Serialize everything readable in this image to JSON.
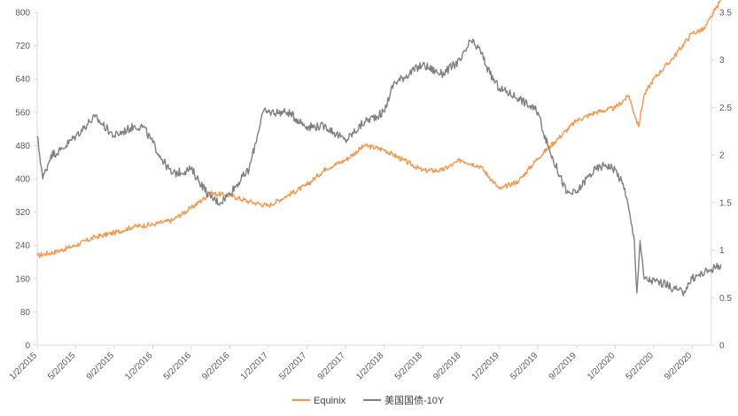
{
  "chart_data": {
    "type": "line",
    "title": "",
    "xlabel": "",
    "ylabel": "",
    "x_tick_labels": [
      "1/2/2015",
      "5/2/2015",
      "9/2/2015",
      "1/2/2016",
      "5/2/2016",
      "9/2/2016",
      "1/2/2017",
      "5/2/2017",
      "9/2/2017",
      "1/2/2018",
      "5/2/2018",
      "9/2/2018",
      "1/2/2019",
      "5/2/2019",
      "9/2/2019",
      "1/2/2020",
      "5/2/2020",
      "9/2/2020"
    ],
    "y_left": {
      "ylim": [
        0,
        800
      ],
      "ticks": [
        "0",
        "80",
        "160",
        "240",
        "320",
        "400",
        "480",
        "560",
        "640",
        "720",
        "800"
      ]
    },
    "y_right": {
      "ylim": [
        0,
        3.5
      ],
      "ticks": [
        "0",
        "0.5",
        "1",
        "1.5",
        "2",
        "2.5",
        "3",
        "3.5"
      ]
    },
    "xlim_months": [
      0,
      70
    ],
    "grid": false,
    "legend_position": "bottom-center",
    "series": [
      {
        "name": "Equinix",
        "axis": "left",
        "color": "#F79646",
        "x": [
          "1/2/2015",
          "3/2/2015",
          "5/2/2015",
          "7/2/2015",
          "9/2/2015",
          "11/2/2015",
          "1/2/2016",
          "3/2/2016",
          "5/2/2016",
          "7/2/2016",
          "9/2/2016",
          "11/2/2016",
          "1/2/2017",
          "3/2/2017",
          "5/2/2017",
          "7/2/2017",
          "9/2/2017",
          "11/2/2017",
          "1/2/2018",
          "3/2/2018",
          "5/2/2018",
          "7/2/2018",
          "9/2/2018",
          "11/2/2018",
          "1/2/2019",
          "3/2/2019",
          "5/2/2019",
          "7/2/2019",
          "9/2/2019",
          "11/2/2019",
          "1/2/2020",
          "2/15/2020",
          "3/15/2020",
          "4/2/2020",
          "5/2/2020",
          "7/2/2020",
          "9/2/2020",
          "10/10/2020",
          "11/2/2020",
          "12/2/2020"
        ],
        "values": [
          215,
          225,
          240,
          260,
          270,
          285,
          290,
          300,
          330,
          365,
          360,
          345,
          335,
          360,
          385,
          425,
          445,
          480,
          470,
          445,
          420,
          420,
          445,
          430,
          375,
          395,
          450,
          495,
          540,
          560,
          570,
          600,
          525,
          600,
          640,
          690,
          750,
          760,
          790,
          830
        ]
      },
      {
        "name": "美国国债-10Y",
        "axis": "right",
        "color": "#7F7F7F",
        "x": [
          "1/2/2015",
          "1/20/2015",
          "2/15/2015",
          "3/15/2015",
          "5/2/2015",
          "6/15/2015",
          "7/2/2015",
          "9/2/2015",
          "11/2/2015",
          "12/2/2015",
          "2/2/2016",
          "3/2/2016",
          "5/2/2016",
          "7/2/2016",
          "8/2/2016",
          "9/2/2016",
          "11/2/2016",
          "12/15/2016",
          "1/2/2017",
          "3/2/2017",
          "5/2/2017",
          "7/2/2017",
          "9/2/2017",
          "11/2/2017",
          "1/2/2018",
          "2/2/2018",
          "5/2/2018",
          "7/2/2018",
          "9/2/2018",
          "10/2/2018",
          "11/2/2018",
          "12/2/2018",
          "1/2/2019",
          "3/2/2019",
          "5/2/2019",
          "6/2/2019",
          "8/2/2019",
          "9/2/2019",
          "10/2/2019",
          "11/2/2019",
          "12/2/2019",
          "1/2/2020",
          "2/2/2020",
          "3/2/2020",
          "3/10/2020",
          "3/20/2020",
          "4/2/2020",
          "6/2/2020",
          "8/2/2020",
          "9/2/2020",
          "11/2/2020",
          "12/2/2020"
        ],
        "values": [
          2.2,
          1.75,
          2.0,
          2.05,
          2.2,
          2.35,
          2.4,
          2.2,
          2.3,
          2.3,
          1.95,
          1.8,
          1.85,
          1.55,
          1.5,
          1.6,
          1.85,
          2.45,
          2.45,
          2.45,
          2.3,
          2.3,
          2.15,
          2.35,
          2.45,
          2.75,
          2.95,
          2.85,
          3.0,
          3.2,
          3.1,
          2.85,
          2.7,
          2.6,
          2.45,
          2.1,
          1.6,
          1.6,
          1.75,
          1.85,
          1.9,
          1.85,
          1.65,
          1.1,
          0.55,
          1.1,
          0.7,
          0.65,
          0.55,
          0.7,
          0.8,
          0.85
        ]
      }
    ]
  }
}
